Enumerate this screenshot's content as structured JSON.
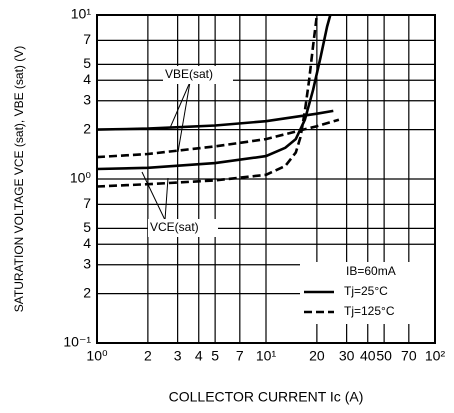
{
  "chart_data": {
    "type": "line",
    "xscale": "log",
    "yscale": "log",
    "xlim": [
      1,
      100
    ],
    "ylim": [
      0.1,
      10
    ],
    "xticks": [
      {
        "value": 1,
        "label": "10⁰"
      },
      2,
      3,
      4,
      5,
      7,
      {
        "value": 10,
        "label": "10¹"
      },
      20,
      30,
      40,
      50,
      70,
      {
        "value": 100,
        "label": "10²"
      }
    ],
    "xtick_labels_short": true,
    "yticks": [
      {
        "value": 0.1,
        "label": "10⁻¹"
      },
      {
        "value": 0.2,
        "label": "2"
      },
      {
        "value": 0.3,
        "label": "3"
      },
      {
        "value": 0.4,
        "label": "4"
      },
      {
        "value": 0.5,
        "label": "5"
      },
      {
        "value": 0.7,
        "label": "7"
      },
      {
        "value": 1,
        "label": "10⁰"
      },
      2,
      3,
      4,
      5,
      7,
      {
        "value": 10,
        "label": "10¹"
      }
    ],
    "grid": true,
    "xlabel": "COLLECTOR CURRENT   Ic (A)",
    "ylabel": "SATURATION VOLTAGE   VCE (sat), VBE (sat) (V)",
    "annotations": [
      {
        "text": "VBE(sat)"
      },
      {
        "text": "VCE(sat)"
      }
    ],
    "legend": {
      "title": "IB=60mA",
      "corner": "lower right",
      "entries": [
        {
          "name": "Tj=25°C",
          "dashed": false
        },
        {
          "name": "Tj=125°C",
          "dashed": true
        }
      ]
    },
    "series": [
      {
        "annotation": 0,
        "legend": 0,
        "color": "#000000",
        "x": [
          1,
          2,
          5,
          10,
          20,
          25
        ],
        "values": [
          2.0,
          2.03,
          2.12,
          2.25,
          2.5,
          2.6
        ]
      },
      {
        "annotation": 0,
        "legend": 1,
        "color": "#000000",
        "x": [
          1,
          2,
          5,
          10,
          20,
          27
        ],
        "values": [
          1.36,
          1.42,
          1.58,
          1.75,
          2.1,
          2.3
        ]
      },
      {
        "annotation": 1,
        "legend": 0,
        "color": "#000000",
        "x": [
          1,
          2,
          5,
          10,
          13,
          15,
          17,
          19,
          21,
          23,
          24
        ],
        "values": [
          1.15,
          1.17,
          1.25,
          1.38,
          1.55,
          1.75,
          2.3,
          3.5,
          5.5,
          8.5,
          10
        ]
      },
      {
        "annotation": 1,
        "legend": 1,
        "color": "#000000",
        "x": [
          1,
          2,
          5,
          10,
          13,
          15,
          16,
          17,
          18,
          19,
          20
        ],
        "values": [
          0.9,
          0.93,
          0.98,
          1.06,
          1.2,
          1.45,
          1.8,
          2.6,
          4,
          6.5,
          10
        ]
      }
    ]
  }
}
